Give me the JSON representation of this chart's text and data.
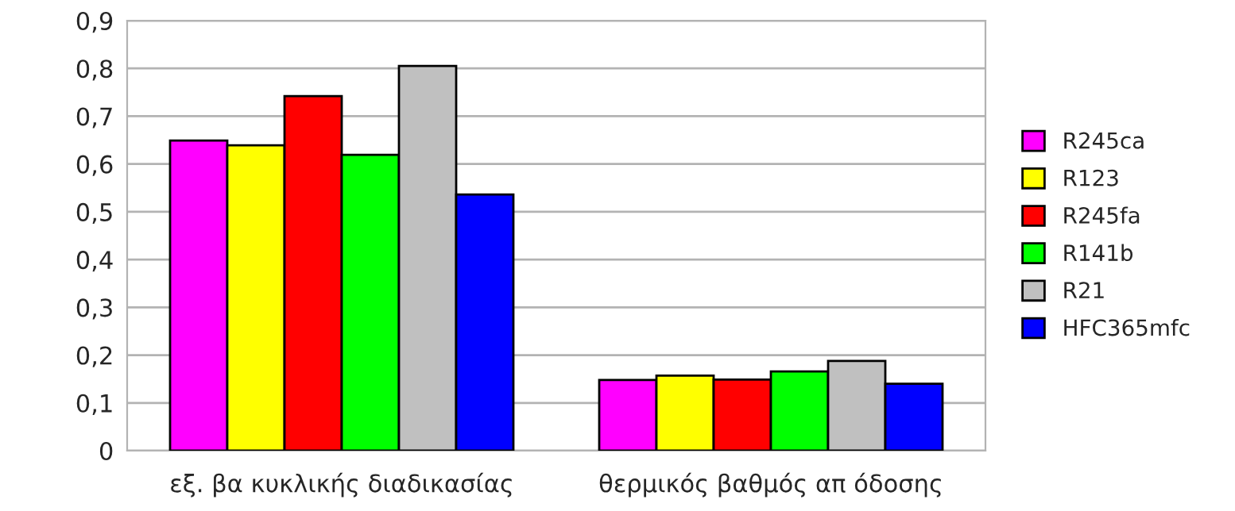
{
  "chart_data": {
    "type": "bar",
    "categories": [
      "εξ. βα κυκλικής διαδικασίας",
      "θερμικός βαθμός απ όδοσης"
    ],
    "series": [
      {
        "name": "R245ca",
        "color": "#ff00ff",
        "values": [
          0.649,
          0.148
        ]
      },
      {
        "name": "R123",
        "color": "#ffff00",
        "values": [
          0.639,
          0.157
        ]
      },
      {
        "name": "R245fa",
        "color": "#ff0000",
        "values": [
          0.742,
          0.149
        ]
      },
      {
        "name": "R141b",
        "color": "#00ff00",
        "values": [
          0.619,
          0.166
        ]
      },
      {
        "name": "R21",
        "color": "#c0c0c0",
        "values": [
          0.805,
          0.188
        ]
      },
      {
        "name": "HFC365mfc",
        "color": "#0000ff",
        "values": [
          0.536,
          0.14
        ]
      }
    ],
    "ylim": [
      0,
      0.9
    ],
    "yticks": [
      {
        "value": 0,
        "label": "0"
      },
      {
        "value": 0.1,
        "label": "0,1"
      },
      {
        "value": 0.2,
        "label": "0,2"
      },
      {
        "value": 0.3,
        "label": "0,3"
      },
      {
        "value": 0.4,
        "label": "0,4"
      },
      {
        "value": 0.5,
        "label": "0,5"
      },
      {
        "value": 0.6,
        "label": "0,6"
      },
      {
        "value": 0.7,
        "label": "0,7"
      },
      {
        "value": 0.8,
        "label": "0,8"
      },
      {
        "value": 0.9,
        "label": "0,9"
      }
    ],
    "grid": "y",
    "legend": "right"
  }
}
